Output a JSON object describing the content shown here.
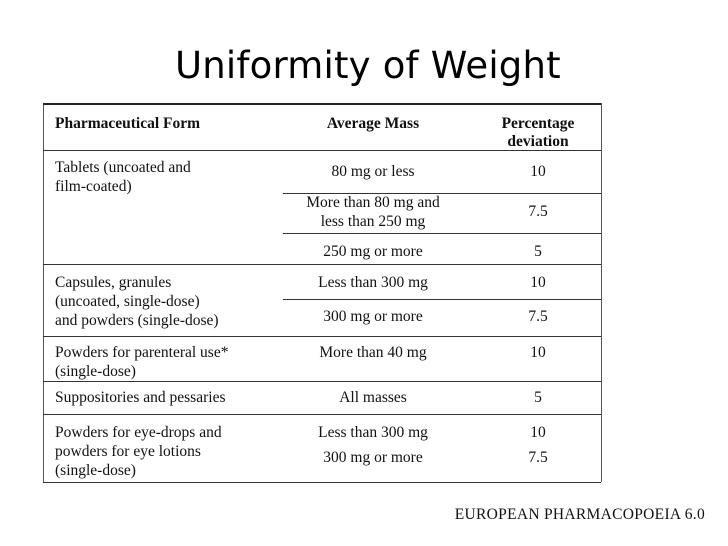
{
  "title": "Uniformity of Weight",
  "headers": {
    "form": "Pharmaceutical Form",
    "mass": "Average Mass",
    "deviation": "Percentage\ndeviation"
  },
  "groups": [
    {
      "form": "Tablets (uncoated and\nfilm-coated)",
      "rows": [
        {
          "mass": "80 mg or less",
          "deviation": "10"
        },
        {
          "mass": "More than 80 mg and\nless than 250 mg",
          "deviation": "7.5"
        },
        {
          "mass": "250 mg or more",
          "deviation": "5"
        }
      ]
    },
    {
      "form": "Capsules, granules\n(uncoated, single-dose)\nand powders (single-dose)",
      "rows": [
        {
          "mass": "Less than 300 mg",
          "deviation": "10"
        },
        {
          "mass": "300 mg or more",
          "deviation": "7.5"
        }
      ]
    },
    {
      "form": "Powders for parenteral use*\n(single-dose)",
      "rows": [
        {
          "mass": "More than 40 mg",
          "deviation": "10"
        }
      ]
    },
    {
      "form": "Suppositories and pessaries",
      "rows": [
        {
          "mass": "All masses",
          "deviation": "5"
        }
      ]
    },
    {
      "form": "Powders for eye-drops and\npowders for eye lotions\n(single-dose)",
      "rows": [
        {
          "mass": "Less than 300 mg",
          "deviation": "10"
        },
        {
          "mass": "300 mg or more",
          "deviation": "7.5"
        }
      ]
    }
  ],
  "source": "EUROPEAN PHARMACOPOEIA 6.0"
}
